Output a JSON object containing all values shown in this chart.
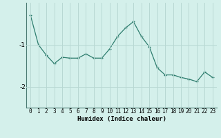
{
  "x": [
    0,
    1,
    2,
    3,
    4,
    5,
    6,
    7,
    8,
    9,
    10,
    11,
    12,
    13,
    14,
    15,
    16,
    17,
    18,
    19,
    20,
    21,
    22,
    23
  ],
  "y": [
    -0.3,
    -1.0,
    -1.25,
    -1.45,
    -1.3,
    -1.32,
    -1.32,
    -1.22,
    -1.32,
    -1.32,
    -1.1,
    -0.8,
    -0.6,
    -0.45,
    -0.8,
    -1.05,
    -1.55,
    -1.72,
    -1.72,
    -1.78,
    -1.82,
    -1.88,
    -1.65,
    -1.78
  ],
  "line_color": "#2e7d6e",
  "marker": "+",
  "bg_color": "#d4f0eb",
  "grid_color": "#b8d8d3",
  "xlabel": "Humidex (Indice chaleur)",
  "ylim": [
    -2.5,
    -0.0
  ],
  "yticks": [
    -2,
    -1
  ],
  "xlim": [
    -0.5,
    23.5
  ],
  "tick_fontsize": 5.5,
  "label_fontsize": 6.5
}
